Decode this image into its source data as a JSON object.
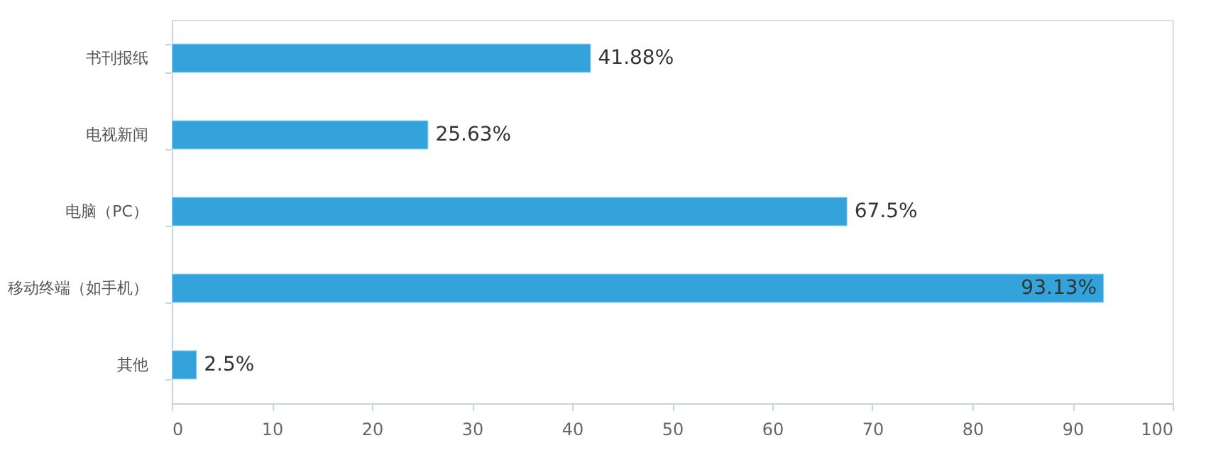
{
  "chart_data": {
    "type": "bar",
    "orientation": "horizontal",
    "categories": [
      "书刊报纸",
      "电视新闻",
      "电脑（PC）",
      "移动终端（如手机）",
      "其他"
    ],
    "values": [
      41.88,
      25.63,
      67.5,
      93.13,
      2.5
    ],
    "value_labels": [
      "41.88%",
      "25.63%",
      "67.5%",
      "93.13%",
      "2.5%"
    ],
    "color": "#34a3db",
    "xlim": [
      0,
      100
    ],
    "xticks": [
      0,
      10,
      20,
      30,
      40,
      50,
      60,
      70,
      80,
      90,
      100
    ],
    "grid": false
  }
}
